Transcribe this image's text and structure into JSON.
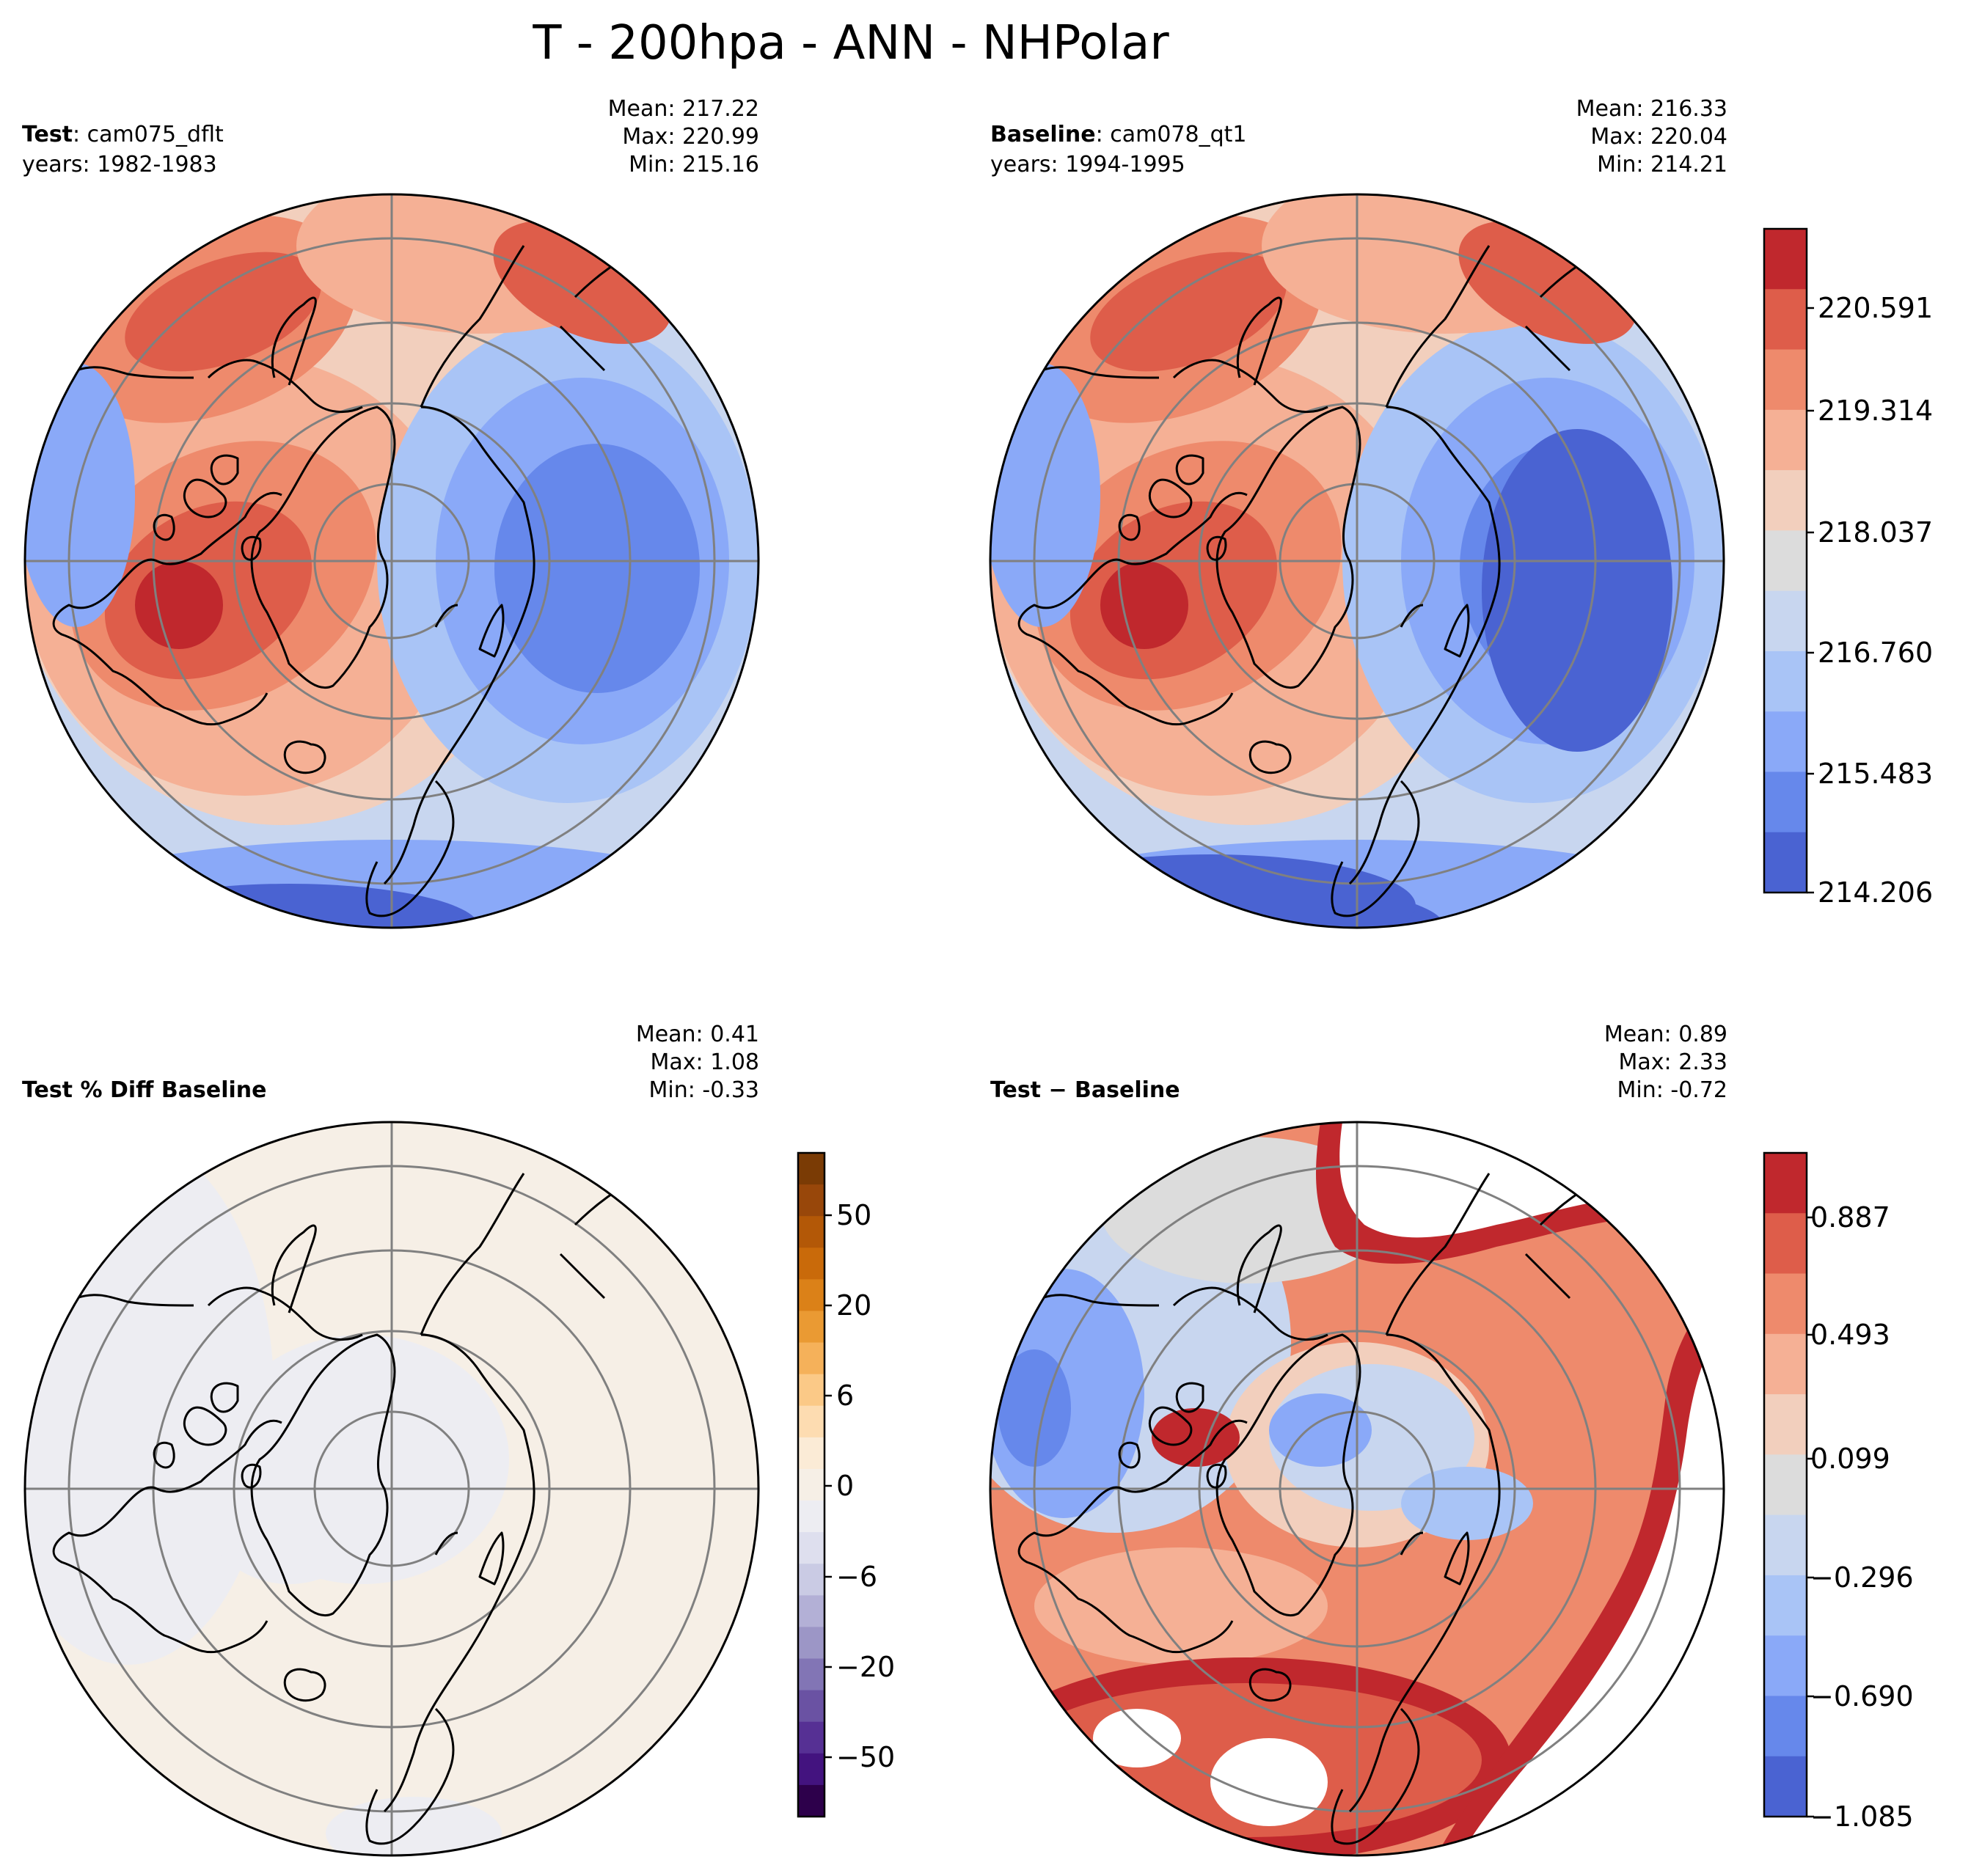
{
  "title": "T - 200hpa - ANN - NHPolar",
  "panels": [
    {
      "id": "test",
      "label_bold": "Test",
      "label_rest": ": cam075_dflt",
      "years": "years: 1982-1983",
      "stats": [
        "Mean: 217.22",
        "Max: 220.99",
        "Min: 215.16"
      ]
    },
    {
      "id": "baseline",
      "label_bold": "Baseline",
      "label_rest": ": cam078_qt1",
      "years": "years: 1994-1995",
      "stats": [
        "Mean: 216.33",
        "Max: 220.04",
        "Min: 214.21"
      ]
    },
    {
      "id": "pctdiff",
      "label_bold": "Test % Diff Baseline",
      "label_rest": "",
      "years": "",
      "stats": [
        "Mean:  0.41",
        "Max:  1.08",
        "Min: -0.33"
      ]
    },
    {
      "id": "diff",
      "label_bold": "Test",
      "label_rest": " − Baseline",
      "label_bold2": "Baseline",
      "years": "",
      "stats": [
        "Mean:  0.89",
        "Max:  2.33",
        "Min: -0.72"
      ]
    }
  ],
  "colorbars": {
    "main": {
      "ticks": [
        "220.591",
        "219.314",
        "218.037",
        "216.760",
        "215.483",
        "214.206"
      ],
      "colors": [
        "#c0282d",
        "#de5d4a",
        "#ee8a6c",
        "#f5b095",
        "#f2cfbd",
        "#dcdcdc",
        "#c8d6ef",
        "#a9c4f6",
        "#8aa9f8",
        "#6688eb",
        "#4a63d2"
      ]
    },
    "pct": {
      "ticks": [
        "50",
        "20",
        "6",
        "0",
        "−6",
        "−20",
        "−50"
      ],
      "colors": [
        "#7a3b05",
        "#98470a",
        "#b35807",
        "#c96a0a",
        "#db8118",
        "#ea9a33",
        "#f5b15a",
        "#fbc987",
        "#fddcb1",
        "#fbebd6",
        "#f6efe6",
        "#ededf2",
        "#dedfee",
        "#cacbe4",
        "#b3b0d6",
        "#9c96c6",
        "#8275b5",
        "#6a52a3",
        "#563094",
        "#43137f",
        "#2d004b"
      ]
    },
    "diff": {
      "ticks": [
        "0.887",
        "0.493",
        "0.099",
        "−0.296",
        "−0.690",
        "−1.085"
      ],
      "colors": [
        "#c0282d",
        "#de5d4a",
        "#ee8a6c",
        "#f5b095",
        "#f2cfbd",
        "#dcdcdc",
        "#c8d6ef",
        "#a9c4f6",
        "#8aa9f8",
        "#6688eb",
        "#4a63d2"
      ]
    }
  },
  "map_colors": {
    "coastline": "#000000",
    "gridline": "#808080",
    "missing": "#ffffff"
  }
}
